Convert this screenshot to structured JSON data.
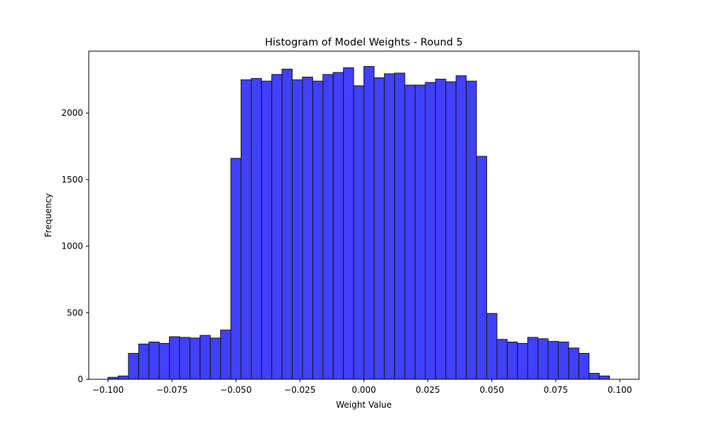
{
  "chart_data": {
    "type": "bar",
    "title": "Histogram of Model Weights - Round 5",
    "xlabel": "Weight Value",
    "ylabel": "Frequency",
    "xlim": [
      -0.1075,
      0.1075
    ],
    "ylim": [
      0,
      2465
    ],
    "x_ticks": [
      -0.1,
      -0.075,
      -0.05,
      -0.025,
      0.0,
      0.025,
      0.05,
      0.075,
      0.1
    ],
    "x_tick_labels": [
      "−0.100",
      "−0.075",
      "−0.050",
      "−0.025",
      "0.000",
      "0.025",
      "0.050",
      "0.075",
      "0.100"
    ],
    "y_ticks": [
      0,
      500,
      1000,
      1500,
      2000
    ],
    "y_tick_labels": [
      "0",
      "500",
      "1000",
      "1500",
      "2000"
    ],
    "bin_start": -0.1,
    "bin_width": 0.004,
    "values": [
      15,
      25,
      195,
      265,
      280,
      270,
      320,
      315,
      310,
      330,
      310,
      370,
      1660,
      2250,
      2260,
      2240,
      2290,
      2330,
      2250,
      2270,
      2240,
      2290,
      2305,
      2340,
      2205,
      2350,
      2265,
      2295,
      2300,
      2210,
      2210,
      2230,
      2255,
      2235,
      2280,
      2240,
      1675,
      495,
      300,
      280,
      270,
      315,
      305,
      285,
      280,
      235,
      195,
      45,
      25
    ],
    "grid": false,
    "legend": "none",
    "colors": {
      "bar_fill": "#0000ff",
      "bar_opacity": 0.75,
      "bar_edge": "#1a1a1a"
    }
  }
}
